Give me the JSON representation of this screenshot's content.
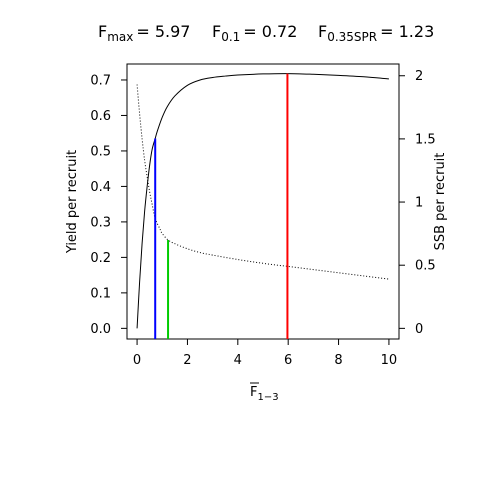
{
  "header": [
    {
      "sym": "F",
      "sub": "max",
      "val": "= 5.97"
    },
    {
      "sym": "F",
      "sub": "0.1",
      "val": "= 0.72"
    },
    {
      "sym": "F",
      "sub": "0.35SPR",
      "val": "= 1.23"
    }
  ],
  "chart_data": {
    "type": "line",
    "xlabel": {
      "sym": "F",
      "sub": "1−3",
      "overline": true
    },
    "ylabel_left": "Yield per recruit",
    "ylabel_right": "SSB per recruit",
    "xlim": [
      -0.4,
      10.4
    ],
    "ylim_left": [
      -0.03,
      0.745
    ],
    "ylim_right": [
      -0.0843,
      2.093
    ],
    "x_ticks": [
      0,
      2,
      4,
      6,
      8,
      10
    ],
    "x_tick_labels": [
      "0",
      "2",
      "4",
      "6",
      "8",
      "10"
    ],
    "y_left_ticks": [
      0.0,
      0.1,
      0.2,
      0.3,
      0.4,
      0.5,
      0.6,
      0.7
    ],
    "y_left_tick_labels": [
      "0.0",
      "0.1",
      "0.2",
      "0.3",
      "0.4",
      "0.5",
      "0.6",
      "0.7"
    ],
    "y_right_ticks": [
      0,
      0.5,
      1,
      1.5,
      2
    ],
    "y_right_tick_labels": [
      "0",
      "0.5",
      "1",
      "1.5",
      "2"
    ],
    "grid": false,
    "series": [
      {
        "axis": "left",
        "style": "solid",
        "color": "#000000",
        "x": [
          0,
          0.1,
          0.2,
          0.3,
          0.4,
          0.5,
          0.6,
          0.72,
          0.8,
          1.0,
          1.2,
          1.5,
          2.0,
          2.5,
          3.0,
          3.5,
          4.0,
          5.0,
          5.97,
          7.0,
          8.0,
          9.0,
          10.0
        ],
        "y": [
          0,
          0.13,
          0.24,
          0.33,
          0.4,
          0.46,
          0.505,
          0.535,
          0.555,
          0.595,
          0.625,
          0.655,
          0.685,
          0.7,
          0.707,
          0.711,
          0.714,
          0.717,
          0.718,
          0.716,
          0.713,
          0.709,
          0.703
        ]
      },
      {
        "axis": "right",
        "style": "dotted",
        "color": "#000000",
        "x": [
          0,
          0.1,
          0.2,
          0.3,
          0.4,
          0.5,
          0.6,
          0.72,
          0.9,
          1.0,
          1.23,
          1.5,
          2.0,
          2.5,
          3.0,
          4.0,
          5.0,
          6.0,
          7.0,
          8.0,
          9.0,
          10.0
        ],
        "y": [
          1.93,
          1.7,
          1.5,
          1.33,
          1.2,
          1.08,
          0.98,
          0.87,
          0.79,
          0.75,
          0.7,
          0.67,
          0.63,
          0.6,
          0.58,
          0.545,
          0.515,
          0.49,
          0.465,
          0.44,
          0.415,
          0.39
        ]
      }
    ],
    "reference_lines": [
      {
        "name": "F0.1",
        "x": 0.72,
        "y_left": 0.535,
        "color": "#0000ff"
      },
      {
        "name": "F0.35SPR",
        "x": 1.23,
        "y_right": 0.7,
        "color": "#00cc00"
      },
      {
        "name": "Fmax",
        "x": 5.97,
        "y_left": 0.718,
        "color": "#ff0000"
      }
    ]
  }
}
